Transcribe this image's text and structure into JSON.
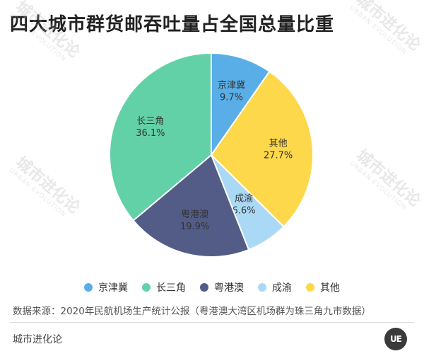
{
  "watermark": {
    "cn": "城市进化论",
    "en": "URBAN EVOLUTION"
  },
  "footer": {
    "source": "数据来源：2020年民航机场生产统计公报（粤港澳大湾区机场群为珠三角九市数据）",
    "brand": "城市进化论",
    "logo": "UE"
  },
  "chart_data": {
    "type": "pie",
    "title": "四大城市群货邮吞吐量占全国总量比重",
    "legend_position": "bottom",
    "slices": [
      {
        "label": "京津冀",
        "value": 9.7,
        "display": "9.7%",
        "color": "#5aaee8"
      },
      {
        "label": "其他",
        "value": 27.7,
        "display": "27.7%",
        "color": "#fcd84a"
      },
      {
        "label": "成渝",
        "value": 6.6,
        "display": "6.6%",
        "color": "#aad9f5"
      },
      {
        "label": "粤港澳",
        "value": 19.9,
        "display": "19.9%",
        "color": "#525c87"
      },
      {
        "label": "长三角",
        "value": 36.1,
        "display": "36.1%",
        "color": "#63d1a8"
      }
    ],
    "legend": [
      {
        "label": "京津冀",
        "color": "#5aaee8"
      },
      {
        "label": "长三角",
        "color": "#63d1a8"
      },
      {
        "label": "粤港澳",
        "color": "#525c87"
      },
      {
        "label": "成渝",
        "color": "#aad9f5"
      },
      {
        "label": "其他",
        "color": "#fcd84a"
      }
    ]
  }
}
